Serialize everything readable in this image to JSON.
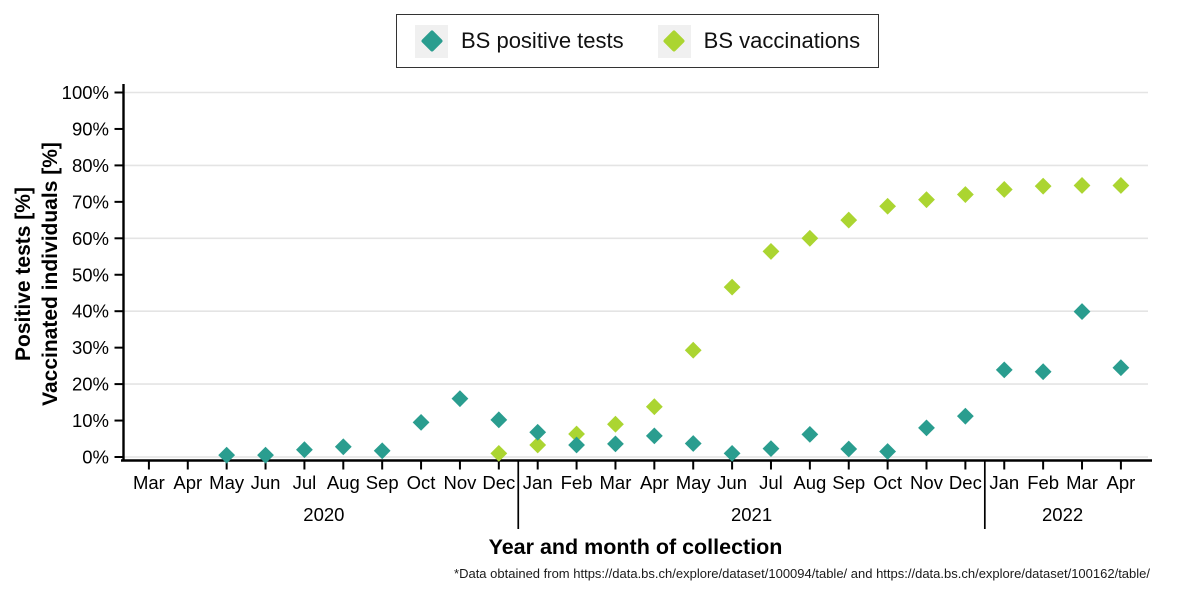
{
  "legend": {
    "items": [
      {
        "label": "BS positive tests",
        "color": "#2a9d8f"
      },
      {
        "label": "BS vaccinations",
        "color": "#abd531"
      }
    ]
  },
  "axes": {
    "y_title_line1": "Positive tests [%]",
    "y_title_line2": "Vaccinated individuals [%]",
    "x_title": "Year and month of collection",
    "y_tick_labels": [
      "0%",
      "10%",
      "20%",
      "30%",
      "40%",
      "50%",
      "60%",
      "70%",
      "80%",
      "90%",
      "100%"
    ]
  },
  "footnote": "*Data obtained from https://data.bs.ch/explore/dataset/100094/table/ and https://data.bs.ch/explore/dataset/100162/table/",
  "chart_data": {
    "type": "scatter",
    "title": "",
    "xlabel": "Year and month of collection",
    "ylabel": "Positive tests [%] / Vaccinated individuals [%]",
    "x_categories": [
      "Mar",
      "Apr",
      "May",
      "Jun",
      "Jul",
      "Aug",
      "Sep",
      "Oct",
      "Nov",
      "Dec",
      "Jan",
      "Feb",
      "Mar",
      "Apr",
      "May",
      "Jun",
      "Jul",
      "Aug",
      "Sep",
      "Oct",
      "Nov",
      "Dec",
      "Jan",
      "Feb",
      "Mar",
      "Apr"
    ],
    "year_groups": [
      {
        "label": "2020",
        "start": 0,
        "end": 9
      },
      {
        "label": "2021",
        "start": 10,
        "end": 21
      },
      {
        "label": "2022",
        "start": 22,
        "end": 25
      }
    ],
    "ylim": [
      0,
      100
    ],
    "y_tick_step": 10,
    "y_gridline_step": 20,
    "grid": "major-horizontal",
    "legend_position": "top-center",
    "series": [
      {
        "name": "BS positive tests",
        "color": "#2a9d8f",
        "marker": "diamond",
        "values": [
          null,
          null,
          0.5,
          0.5,
          2,
          2.8,
          1.7,
          9.5,
          16,
          10.2,
          6.8,
          3.3,
          3.6,
          5.8,
          3.7,
          1,
          2.3,
          6.2,
          2.2,
          1.5,
          8,
          11.2,
          23.9,
          23.4,
          39.9,
          24.5
        ]
      },
      {
        "name": "BS vaccinations",
        "color": "#abd531",
        "marker": "diamond",
        "values": [
          null,
          null,
          null,
          null,
          null,
          null,
          null,
          null,
          null,
          1,
          3.3,
          6.3,
          9,
          13.8,
          29.3,
          46.6,
          56.4,
          60,
          65,
          68.8,
          70.6,
          72,
          73.4,
          74.3,
          74.5,
          74.5
        ]
      }
    ]
  }
}
